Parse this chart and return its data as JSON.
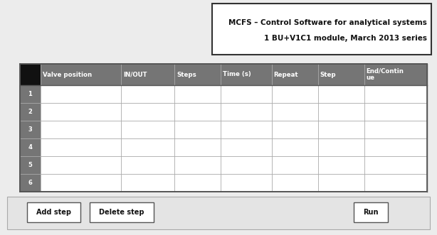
{
  "bg_color": "#ececec",
  "title_box_text_line1": "MCFS – Control Software for analytical systems",
  "title_box_text_line2": "1 BU+V1C1 module, March 2013 series",
  "header_cols": [
    "",
    "Valve position",
    "IN/OUT",
    "Steps",
    "Time (s)",
    "Repeat",
    "Step",
    "End/Contin\nue"
  ],
  "header_bg": "#757575",
  "header_text_color": "#ffffff",
  "row_numbers": [
    "1",
    "2",
    "3",
    "4",
    "5",
    "6"
  ],
  "row_num_bg": "#757575",
  "row_num_text_color": "#ffffff",
  "button_labels": [
    "Add step",
    "Delete step",
    "Run"
  ],
  "font_size_title": 7.5,
  "font_size_header": 6.2,
  "font_size_row": 6.0,
  "font_size_button": 7.0
}
